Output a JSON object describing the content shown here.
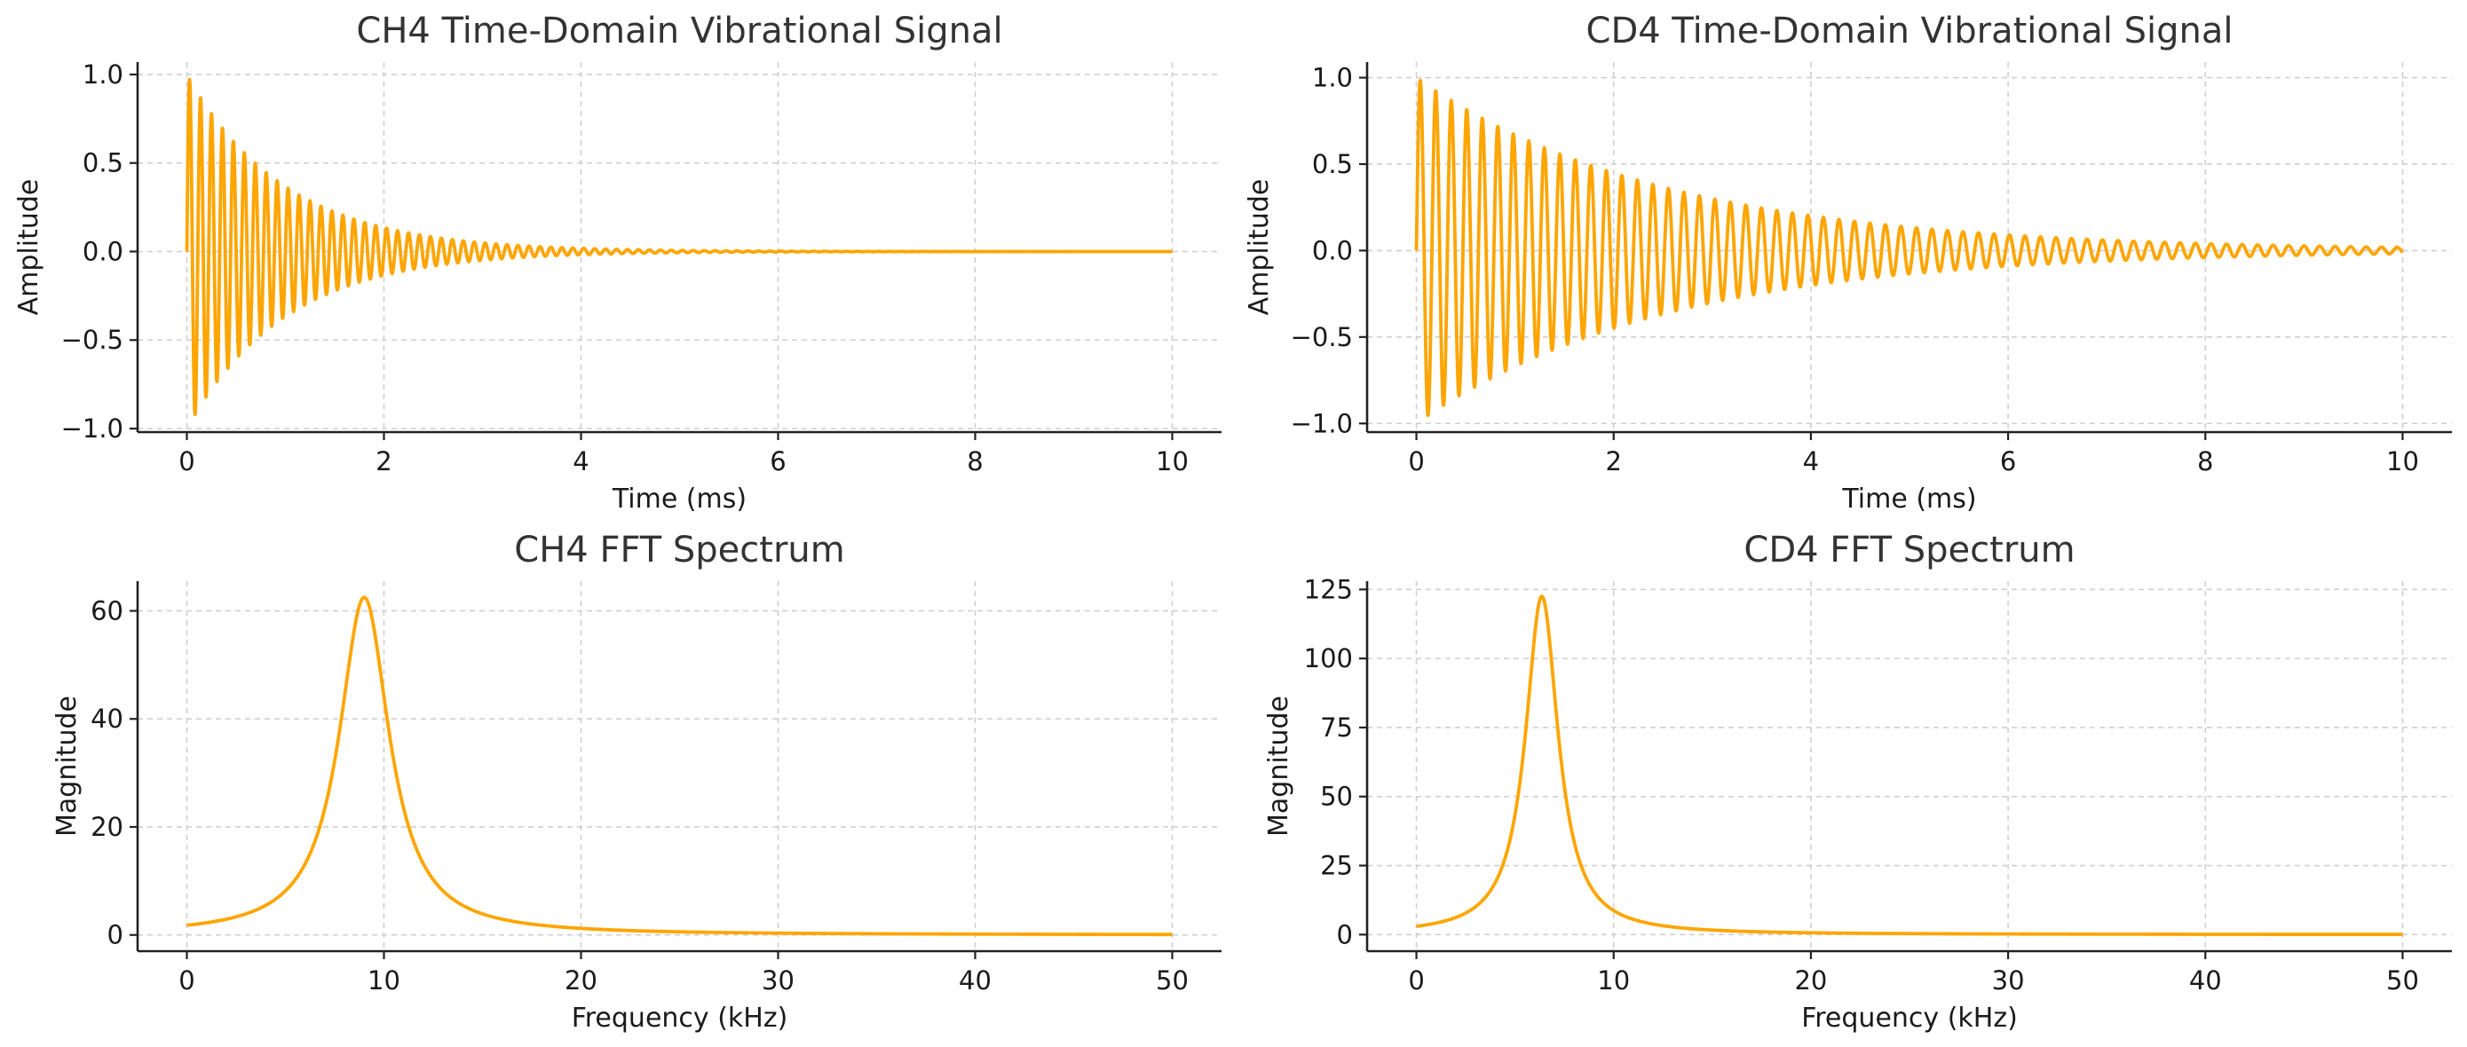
{
  "chart_data": [
    {
      "type": "line",
      "title": "CH4 Time-Domain Vibrational Signal",
      "xlabel": "Time (ms)",
      "ylabel": "Amplitude",
      "xlim": [
        -0.5,
        10.5
      ],
      "ylim": [
        -1.02,
        1.07
      ],
      "xticks": [
        0,
        2,
        4,
        6,
        8,
        10
      ],
      "yticks": [
        -1.0,
        -0.5,
        0.0,
        0.5,
        1.0
      ],
      "grid": true,
      "color": "#ffa500",
      "series": [
        {
          "function": "exp(-t/1.0)·sin(2π·9·t), t in ms",
          "frequency_khz": 9,
          "decay_time_ms": 1.0,
          "t_range_ms": [
            0,
            10
          ],
          "amplitude": 1.0
        }
      ]
    },
    {
      "type": "line",
      "title": "CD4 Time-Domain Vibrational Signal",
      "xlabel": "Time (ms)",
      "ylabel": "Amplitude",
      "xlim": [
        -0.5,
        10.5
      ],
      "ylim": [
        -1.05,
        1.09
      ],
      "xticks": [
        0,
        2,
        4,
        6,
        8,
        10
      ],
      "yticks": [
        -1.0,
        -0.5,
        0.0,
        0.5,
        1.0
      ],
      "grid": true,
      "color": "#ffa500",
      "series": [
        {
          "function": "exp(-t/2.5)·sin(2π·6.36·t), t in ms",
          "frequency_khz": 6.36,
          "decay_time_ms": 2.5,
          "t_range_ms": [
            0,
            10
          ],
          "amplitude": 1.0
        }
      ]
    },
    {
      "type": "line",
      "title": "CH4 FFT Spectrum",
      "xlabel": "Frequency (kHz)",
      "ylabel": "Magnitude",
      "xlim": [
        -2.5,
        52.5
      ],
      "ylim": [
        -3,
        65.5
      ],
      "xticks": [
        0,
        10,
        20,
        30,
        40,
        50
      ],
      "yticks": [
        0,
        20,
        40,
        60
      ],
      "grid": true,
      "color": "#ffa500",
      "series": [
        {
          "function": "FFT magnitude of decaying sinusoid (Lorentzian peak)",
          "peak_frequency_khz": 9,
          "peak_magnitude": 62.5,
          "value_at_0_khz": 1.8,
          "value_at_50_khz": 0.1,
          "f_range_khz": [
            0,
            50
          ]
        }
      ]
    },
    {
      "type": "line",
      "title": "CD4 FFT Spectrum",
      "xlabel": "Frequency (kHz)",
      "ylabel": "Magnitude",
      "xlim": [
        -2.5,
        52.5
      ],
      "ylim": [
        -6,
        128
      ],
      "xticks": [
        0,
        10,
        20,
        30,
        40,
        50
      ],
      "yticks": [
        0,
        25,
        50,
        75,
        100,
        125
      ],
      "grid": true,
      "color": "#ffa500",
      "series": [
        {
          "function": "FFT magnitude of decaying sinusoid (Lorentzian peak)",
          "peak_frequency_khz": 6.36,
          "peak_magnitude": 122.5,
          "value_at_0_khz": 3.0,
          "value_at_50_khz": 0.1,
          "f_range_khz": [
            0,
            50
          ]
        }
      ]
    }
  ]
}
